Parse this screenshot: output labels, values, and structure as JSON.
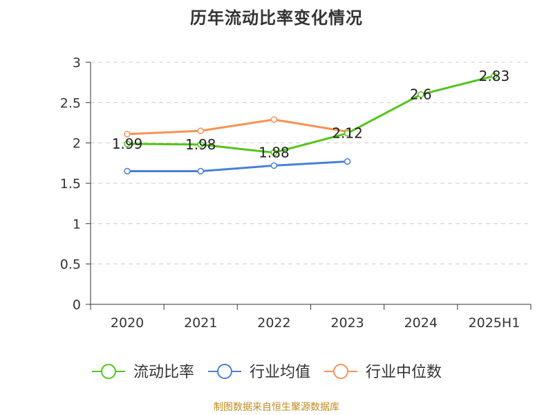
{
  "chart_data": {
    "type": "line",
    "title": "历年流动比率变化情况",
    "categories": [
      "2020",
      "2021",
      "2022",
      "2023",
      "2024",
      "2025H1"
    ],
    "series": [
      {
        "name": "流动比率",
        "color": "#52c41a",
        "values": [
          1.99,
          1.98,
          1.88,
          2.12,
          2.6,
          2.83
        ],
        "labels": [
          "1.99",
          "1.98",
          "1.88",
          "2.12",
          "2.6",
          "2.83"
        ]
      },
      {
        "name": "行业均值",
        "color": "#4a7fd6",
        "values": [
          1.65,
          1.65,
          1.72,
          1.77,
          null,
          null
        ],
        "labels": []
      },
      {
        "name": "行业中位数",
        "color": "#f79256",
        "values": [
          2.11,
          2.15,
          2.29,
          2.14,
          null,
          null
        ],
        "labels": []
      }
    ],
    "ylim": [
      0,
      3
    ],
    "yticks": [
      "0",
      "0.5",
      "1",
      "1.5",
      "2",
      "2.5",
      "3"
    ],
    "ytick_values": [
      0,
      0.5,
      1,
      1.5,
      2,
      2.5,
      3
    ],
    "xlabel": "",
    "ylabel": "",
    "grid": true,
    "legend_position": "bottom"
  },
  "source": "制图数据来自恒生聚源数据库"
}
